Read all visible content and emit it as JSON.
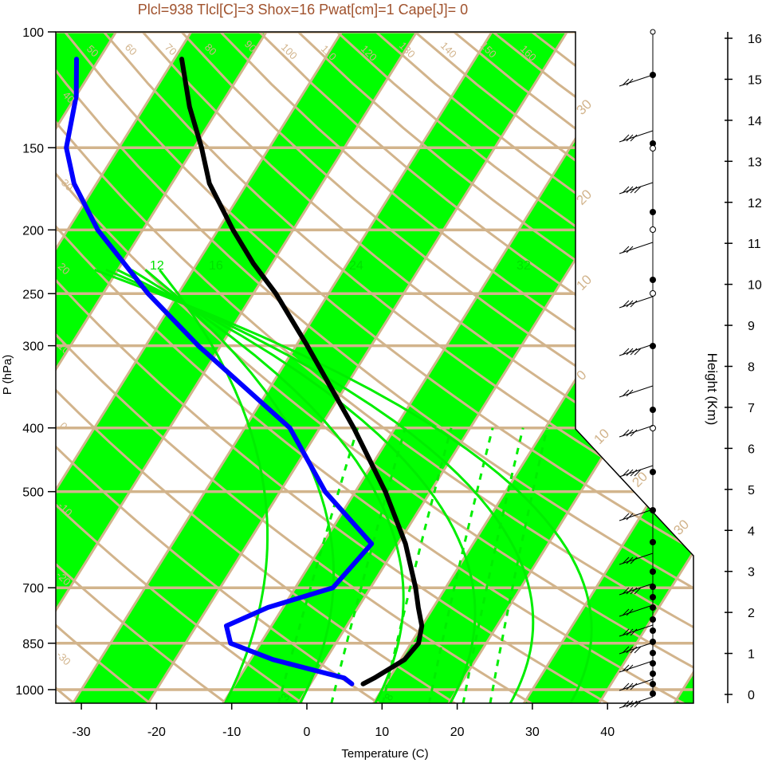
{
  "title": "Plcl=938 Tlcl[C]=3 Shox=16 Pwat[cm]=1 Cape[J]= 0",
  "colors": {
    "band": "#00ff00",
    "isoline": "#d2b48c",
    "mixing": "#00ee00",
    "temp": "#000000",
    "dew": "#0000ff",
    "title": "#a0522d"
  },
  "chart_data": {
    "type": "line",
    "title": "Plcl=938 Tlcl[C]=3 Shox=16 Pwat[cm]=1 Cape[J]= 0",
    "xlabel": "Temperature (C)",
    "ylabel": "P (hPa)",
    "y2label": "Height (Km)",
    "xlim": [
      -35,
      45
    ],
    "ylim": [
      1050,
      100
    ],
    "y_scale": "log",
    "x_ticks": [
      -30,
      -20,
      -10,
      0,
      10,
      20,
      30,
      40
    ],
    "p_ticks": [
      100,
      150,
      200,
      250,
      300,
      400,
      500,
      700,
      850,
      1000
    ],
    "height_ticks": [
      0,
      1,
      2,
      3,
      4,
      5,
      6,
      7,
      8,
      9,
      10,
      11,
      12,
      13,
      14,
      15,
      16
    ],
    "isotherm_labels": [
      "50",
      "60",
      "70",
      "80",
      "90",
      "100",
      "110",
      "120",
      "130",
      "140",
      "150",
      "160",
      "40",
      "30",
      "20",
      "10",
      "0",
      "-10",
      "-20",
      "-30"
    ],
    "moist_adiabat_labels": [
      "30",
      "20",
      "10",
      "0",
      "10",
      "20",
      "30"
    ],
    "mixing_ratio_labels_top": [
      "12",
      "16",
      "24",
      "32"
    ],
    "mixing_ratio_labels_bottom": [
      "3",
      "8"
    ],
    "series": [
      {
        "kind": "temperature",
        "points": [
          {
            "p": 980,
            "t": 7.0
          },
          {
            "p": 960,
            "t": 8.0
          },
          {
            "p": 900,
            "t": 10.5
          },
          {
            "p": 850,
            "t": 11.0
          },
          {
            "p": 800,
            "t": 10.0
          },
          {
            "p": 750,
            "t": 8.0
          },
          {
            "p": 700,
            "t": 6.0
          },
          {
            "p": 600,
            "t": 1.0
          },
          {
            "p": 500,
            "t": -6.0
          },
          {
            "p": 400,
            "t": -15.5
          },
          {
            "p": 300,
            "t": -28.5
          },
          {
            "p": 250,
            "t": -37.0
          },
          {
            "p": 225,
            "t": -42.5
          },
          {
            "p": 200,
            "t": -48.0
          },
          {
            "p": 170,
            "t": -55.0
          },
          {
            "p": 150,
            "t": -59.0
          },
          {
            "p": 130,
            "t": -64.0
          },
          {
            "p": 110,
            "t": -69.0
          }
        ]
      },
      {
        "kind": "dewpoint",
        "points": [
          {
            "p": 980,
            "t": 5.5
          },
          {
            "p": 960,
            "t": 4.0
          },
          {
            "p": 900,
            "t": -7.0
          },
          {
            "p": 850,
            "t": -14.0
          },
          {
            "p": 800,
            "t": -16.0
          },
          {
            "p": 750,
            "t": -12.0
          },
          {
            "p": 700,
            "t": -5.0
          },
          {
            "p": 600,
            "t": -3.5
          },
          {
            "p": 500,
            "t": -14.0
          },
          {
            "p": 400,
            "t": -24.0
          },
          {
            "p": 300,
            "t": -43.0
          },
          {
            "p": 250,
            "t": -54.0
          },
          {
            "p": 200,
            "t": -66.0
          },
          {
            "p": 170,
            "t": -73.0
          },
          {
            "p": 150,
            "t": -77.0
          },
          {
            "p": 125,
            "t": -80.0
          },
          {
            "p": 110,
            "t": -83.0
          }
        ]
      }
    ]
  }
}
